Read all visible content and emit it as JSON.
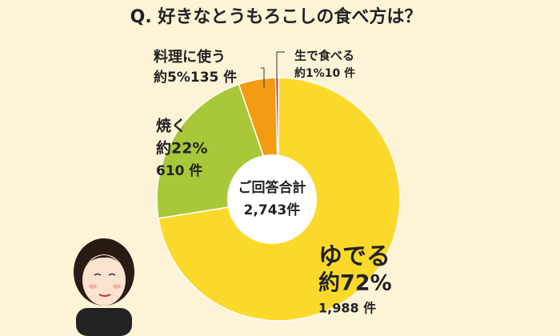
{
  "chart_data": {
    "type": "pie",
    "title": "Q. 好きなとうもろこしの食べ方は？",
    "categories": [
      "ゆでる",
      "焼く",
      "料理に使う",
      "生で食べる"
    ],
    "values": [
      1988,
      610,
      135,
      10
    ],
    "value_labels": [
      "1,988 件",
      "610 件",
      "135 件",
      "10 件"
    ],
    "percents": [
      72,
      22,
      5,
      1
    ],
    "percent_labels": [
      "約72%",
      "約22%",
      "約5%",
      "約1%"
    ],
    "colors": [
      "#fbd92b",
      "#a8c83a",
      "#f39c12",
      "#d7191f"
    ],
    "total_title": "ご回答合計",
    "total": 2743,
    "total_label": "2,743件"
  }
}
